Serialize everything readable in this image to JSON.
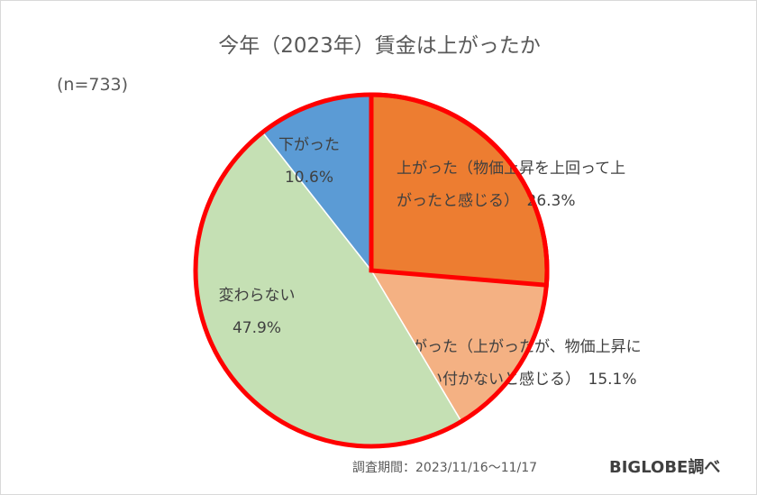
{
  "title": "今年（2023年）賃金は上がったか",
  "sample_label": "(n=733)",
  "footer": {
    "date": "調査期間：2023/11/16〜11/17",
    "brand": "BIGLOBE調べ"
  },
  "chart_data": {
    "type": "pie",
    "title": "今年（2023年）賃金は上がったか",
    "start_angle_deg": 0,
    "direction": "clockwise",
    "slices": [
      {
        "label_lines": [
          "上がった（物価上昇を上回って上",
          "がったと感じる）　26.3%"
        ],
        "value": 26.3,
        "color": "#ed7d31",
        "highlighted": true
      },
      {
        "label_lines": [
          "上がった（上がったが、物価上昇に",
          "は追い付かないと感じる）　15.1%"
        ],
        "value": 15.1,
        "color": "#f4b183",
        "highlighted": false
      },
      {
        "label_lines": [
          "変わらない",
          "47.9%"
        ],
        "value": 47.9,
        "color": "#c5e0b4",
        "highlighted": false
      },
      {
        "label_lines": [
          "下がった",
          "10.6%"
        ],
        "value": 10.6,
        "color": "#5b9bd5",
        "highlighted": false
      }
    ],
    "outline_color": "#ff0000"
  }
}
